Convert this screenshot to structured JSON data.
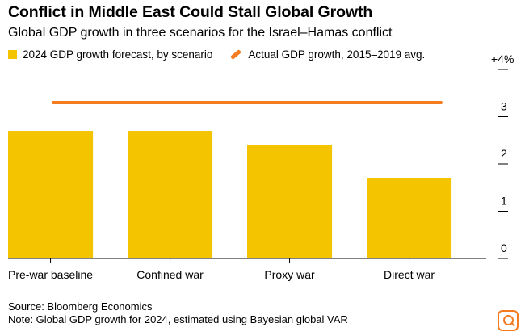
{
  "header": {
    "title": "Conflict in Middle East Could Stall Global Growth",
    "subtitle": "Global GDP growth in three scenarios for the Israel–Hamas conflict"
  },
  "legend": {
    "bars_label": "2024 GDP growth forecast, by scenario",
    "line_label": "Actual GDP growth, 2015–2019 avg."
  },
  "colors": {
    "bar": "#f5c400",
    "line": "#f47b20",
    "axis": "#000000"
  },
  "chart_data": {
    "type": "bar",
    "title": "Conflict in Middle East Could Stall Global Growth",
    "categories": [
      "Pre-war baseline",
      "Confined war",
      "Proxy war",
      "Direct war"
    ],
    "series": [
      {
        "name": "2024 GDP growth forecast, by scenario",
        "values": [
          2.7,
          2.7,
          2.4,
          1.7
        ]
      }
    ],
    "reference_line": {
      "name": "Actual GDP growth, 2015–2019 avg.",
      "value": 3.3
    },
    "ylim": [
      0,
      4
    ],
    "yticks": [
      0,
      1,
      2,
      3,
      4
    ],
    "ytick_labels": [
      "0",
      "1",
      "2",
      "3",
      "+4%"
    ],
    "xlabel": "",
    "ylabel": "",
    "y_axis_side": "right",
    "grid": false,
    "legend_position": "top-left"
  },
  "footer": {
    "source": "Source: Bloomberg Economics",
    "note": "Note: Global GDP growth for 2024, estimated using Bayesian global VAR"
  },
  "widget": {
    "icon": "zoom-icon"
  }
}
